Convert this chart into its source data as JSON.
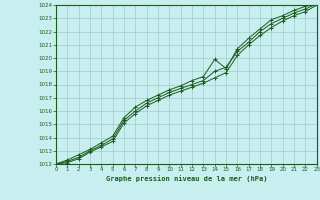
{
  "xlabel": "Graphe pression niveau de la mer (hPa)",
  "bg_color": "#c8eef0",
  "plot_bg_color": "#c8eef0",
  "grid_color": "#a0ccc8",
  "line_color": "#1a5c1a",
  "hours": [
    0,
    1,
    2,
    3,
    4,
    5,
    6,
    7,
    8,
    9,
    10,
    11,
    12,
    13,
    14,
    15,
    16,
    17,
    18,
    19,
    20,
    21,
    22,
    23
  ],
  "pressure_main": [
    1012.0,
    1012.2,
    1012.5,
    1013.0,
    1013.4,
    1013.9,
    1015.3,
    1016.0,
    1016.6,
    1017.0,
    1017.4,
    1017.7,
    1018.0,
    1018.3,
    1019.0,
    1019.3,
    1020.5,
    1021.2,
    1022.0,
    1022.6,
    1023.0,
    1023.4,
    1023.7,
    1024.1
  ],
  "pressure_high": [
    1012.0,
    1012.3,
    1012.7,
    1013.1,
    1013.6,
    1014.1,
    1015.5,
    1016.3,
    1016.8,
    1017.2,
    1017.6,
    1017.9,
    1018.3,
    1018.6,
    1019.9,
    1019.2,
    1020.7,
    1021.5,
    1022.2,
    1022.9,
    1023.2,
    1023.6,
    1023.9,
    1024.3
  ],
  "pressure_low": [
    1012.0,
    1012.1,
    1012.4,
    1012.9,
    1013.3,
    1013.7,
    1015.1,
    1015.8,
    1016.4,
    1016.8,
    1017.2,
    1017.5,
    1017.8,
    1018.1,
    1018.5,
    1018.9,
    1020.2,
    1021.0,
    1021.7,
    1022.3,
    1022.8,
    1023.2,
    1023.5,
    1024.0
  ],
  "ylim": [
    1012,
    1024
  ],
  "yticks": [
    1012,
    1013,
    1014,
    1015,
    1016,
    1017,
    1018,
    1019,
    1020,
    1021,
    1022,
    1023,
    1024
  ],
  "xlim": [
    0,
    23
  ],
  "xticks": [
    0,
    1,
    2,
    3,
    4,
    5,
    6,
    7,
    8,
    9,
    10,
    11,
    12,
    13,
    14,
    15,
    16,
    17,
    18,
    19,
    20,
    21,
    22,
    23
  ]
}
